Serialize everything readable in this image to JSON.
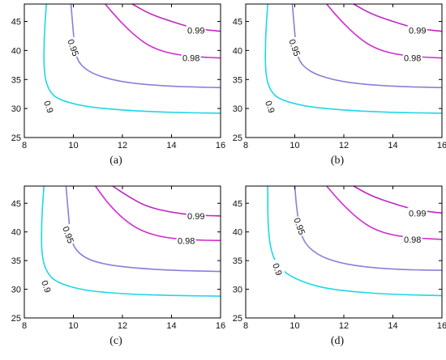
{
  "chart_data": [
    {
      "type": "contour",
      "caption": "(a)",
      "xlim": [
        8,
        16
      ],
      "ylim": [
        25,
        48
      ],
      "xticks": [
        "8",
        "10",
        "12",
        "14",
        "16"
      ],
      "yticks": [
        "25",
        "30",
        "35",
        "40",
        "45"
      ],
      "contours": [
        {
          "level": "0.9",
          "color": "#1fd6e6",
          "label_x": 9.0,
          "label_y": 30.3,
          "points": [
            [
              8.9,
              48
            ],
            [
              8.8,
              42
            ],
            [
              8.8,
              36
            ],
            [
              9.0,
              33
            ],
            [
              9.4,
              31.5
            ],
            [
              10.5,
              30.3
            ],
            [
              12,
              29.7
            ],
            [
              14,
              29.3
            ],
            [
              16,
              29.2
            ]
          ]
        },
        {
          "level": "0.95",
          "color": "#8a7fd9",
          "label_x": 10.0,
          "label_y": 40.5,
          "points": [
            [
              9.9,
              48
            ],
            [
              10.0,
              43
            ],
            [
              10.1,
              38.5
            ],
            [
              10.6,
              36.3
            ],
            [
              11.5,
              35
            ],
            [
              12.5,
              34.3
            ],
            [
              14,
              33.8
            ],
            [
              16,
              33.6
            ]
          ]
        },
        {
          "level": "0.98",
          "color": "#d02dd0",
          "label_x": 14.8,
          "label_y": 38.7,
          "points": [
            [
              11.3,
              48
            ],
            [
              11.9,
              45
            ],
            [
              12.6,
              42.2
            ],
            [
              13.2,
              40.5
            ],
            [
              14,
              39.4
            ],
            [
              15,
              38.9
            ],
            [
              16,
              38.7
            ]
          ]
        },
        {
          "level": "0.99",
          "color": "#c026c0",
          "label_x": 15.0,
          "label_y": 43.5,
          "points": [
            [
              12.4,
              48
            ],
            [
              13.1,
              46.3
            ],
            [
              14,
              45
            ],
            [
              14.6,
              44.2
            ],
            [
              15.3,
              43.6
            ],
            [
              16,
              43.3
            ]
          ]
        }
      ]
    },
    {
      "type": "contour",
      "caption": "(b)",
      "xlim": [
        8,
        16
      ],
      "ylim": [
        25,
        48
      ],
      "xticks": [
        "8",
        "10",
        "12",
        "14",
        "16"
      ],
      "yticks": [
        "25",
        "30",
        "35",
        "40",
        "45"
      ],
      "contours": [
        {
          "level": "0.9",
          "color": "#1fd6e6",
          "label_x": 9.0,
          "label_y": 30.3,
          "points": [
            [
              8.9,
              48
            ],
            [
              8.8,
              42
            ],
            [
              8.8,
              36
            ],
            [
              9.0,
              33
            ],
            [
              9.4,
              31.5
            ],
            [
              10.5,
              30.3
            ],
            [
              12,
              29.7
            ],
            [
              14,
              29.3
            ],
            [
              16,
              29.2
            ]
          ]
        },
        {
          "level": "0.95",
          "color": "#8a7fd9",
          "label_x": 10.0,
          "label_y": 40.5,
          "points": [
            [
              9.9,
              48
            ],
            [
              10.0,
              43
            ],
            [
              10.1,
              38.5
            ],
            [
              10.6,
              36.3
            ],
            [
              11.5,
              35
            ],
            [
              12.5,
              34.3
            ],
            [
              14,
              33.8
            ],
            [
              16,
              33.6
            ]
          ]
        },
        {
          "level": "0.98",
          "color": "#d02dd0",
          "label_x": 14.8,
          "label_y": 38.7,
          "points": [
            [
              11.3,
              48
            ],
            [
              11.9,
              45
            ],
            [
              12.6,
              42.2
            ],
            [
              13.2,
              40.5
            ],
            [
              14,
              39.4
            ],
            [
              15,
              38.9
            ],
            [
              16,
              38.7
            ]
          ]
        },
        {
          "level": "0.99",
          "color": "#c026c0",
          "label_x": 15.0,
          "label_y": 43.5,
          "points": [
            [
              12.4,
              48
            ],
            [
              13.1,
              46.3
            ],
            [
              14,
              45
            ],
            [
              14.6,
              44.2
            ],
            [
              15.3,
              43.6
            ],
            [
              16,
              43.3
            ]
          ]
        }
      ]
    },
    {
      "type": "contour",
      "caption": "(c)",
      "xlim": [
        8,
        16
      ],
      "ylim": [
        25,
        48
      ],
      "xticks": [
        "8",
        "10",
        "12",
        "14",
        "16"
      ],
      "yticks": [
        "25",
        "30",
        "35",
        "40",
        "45"
      ],
      "contours": [
        {
          "level": "0.9",
          "color": "#1fd6e6",
          "label_x": 8.9,
          "label_y": 30.5,
          "points": [
            [
              8.8,
              48
            ],
            [
              8.7,
              42
            ],
            [
              8.7,
              36
            ],
            [
              8.9,
              33
            ],
            [
              9.3,
              31.2
            ],
            [
              10.4,
              29.8
            ],
            [
              12,
              29.2
            ],
            [
              14,
              28.9
            ],
            [
              16,
              28.8
            ]
          ]
        },
        {
          "level": "0.95",
          "color": "#8a7fd9",
          "label_x": 9.8,
          "label_y": 39.5,
          "points": [
            [
              9.7,
              48
            ],
            [
              9.8,
              43
            ],
            [
              9.9,
              38
            ],
            [
              10.4,
              35.5
            ],
            [
              11.3,
              34.3
            ],
            [
              12.5,
              33.7
            ],
            [
              14,
              33.3
            ],
            [
              16,
              33.1
            ]
          ]
        },
        {
          "level": "0.98",
          "color": "#d02dd0",
          "label_x": 14.6,
          "label_y": 38.5,
          "points": [
            [
              10.9,
              48
            ],
            [
              11.4,
              45
            ],
            [
              12.1,
              42
            ],
            [
              12.8,
              40.1
            ],
            [
              13.7,
              39
            ],
            [
              14.8,
              38.6
            ],
            [
              16,
              38.5
            ]
          ]
        },
        {
          "level": "0.99",
          "color": "#c026c0",
          "label_x": 15.0,
          "label_y": 42.8,
          "points": [
            [
              11.6,
              48
            ],
            [
              12.3,
              46
            ],
            [
              13.0,
              44.4
            ],
            [
              14,
              43.4
            ],
            [
              15,
              42.9
            ],
            [
              16,
              42.8
            ]
          ]
        }
      ]
    },
    {
      "type": "contour",
      "caption": "(d)",
      "xlim": [
        8,
        16
      ],
      "ylim": [
        25,
        48
      ],
      "xticks": [
        "8",
        "10",
        "12",
        "14",
        "16"
      ],
      "yticks": [
        "25",
        "30",
        "35",
        "40",
        "45"
      ],
      "contours": [
        {
          "level": "0.9",
          "color": "#1fd6e6",
          "label_x": 9.3,
          "label_y": 33.5,
          "points": [
            [
              8.9,
              48
            ],
            [
              8.9,
              42
            ],
            [
              9.0,
              37
            ],
            [
              9.3,
              34
            ],
            [
              9.9,
              32
            ],
            [
              11,
              30.3
            ],
            [
              12.5,
              29.5
            ],
            [
              14,
              29.1
            ],
            [
              16,
              28.9
            ]
          ]
        },
        {
          "level": "0.95",
          "color": "#8a7fd9",
          "label_x": 10.2,
          "label_y": 41.0,
          "points": [
            [
              10.0,
              48
            ],
            [
              10.1,
              43
            ],
            [
              10.3,
              38.5
            ],
            [
              10.9,
              36
            ],
            [
              11.8,
              34.6
            ],
            [
              13,
              33.8
            ],
            [
              14.5,
              33.4
            ],
            [
              16,
              33.3
            ]
          ]
        },
        {
          "level": "0.98",
          "color": "#d02dd0",
          "label_x": 14.8,
          "label_y": 38.7,
          "points": [
            [
              11.3,
              48
            ],
            [
              11.9,
              45
            ],
            [
              12.6,
              42.2
            ],
            [
              13.2,
              40.5
            ],
            [
              14,
              39.4
            ],
            [
              15,
              38.9
            ],
            [
              16,
              38.7
            ]
          ]
        },
        {
          "level": "0.99",
          "color": "#c026c0",
          "label_x": 15.0,
          "label_y": 43.3,
          "points": [
            [
              12.4,
              48
            ],
            [
              13.1,
              46.3
            ],
            [
              14,
              45
            ],
            [
              14.6,
              44.2
            ],
            [
              15.3,
              43.6
            ],
            [
              16,
              43.3
            ]
          ]
        }
      ]
    }
  ]
}
